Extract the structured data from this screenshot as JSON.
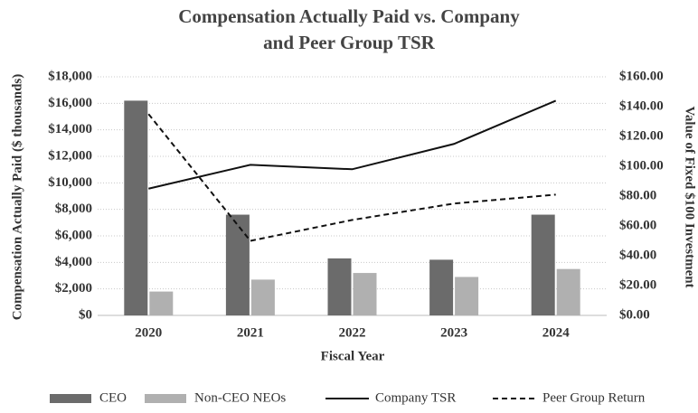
{
  "chart_data": {
    "type": "bar_line",
    "title_lines": [
      "Compensation Actually Paid vs. Company",
      "and Peer Group TSR"
    ],
    "x_label": "Fiscal Year",
    "y_label": "Compensation Actually Paid ($ thousands)",
    "y2_label": "Value of Fixed $100 Investment",
    "categories": [
      "2020",
      "2021",
      "2022",
      "2023",
      "2024"
    ],
    "series": [
      {
        "name": "CEO",
        "kind": "bar",
        "color": "#6b6b6b",
        "values": [
          16200,
          7600,
          4300,
          4200,
          7600
        ]
      },
      {
        "name": "Non-CEO NEOs",
        "kind": "bar",
        "color": "#b0b0b0",
        "values": [
          1800,
          2700,
          3200,
          2900,
          3500
        ]
      },
      {
        "name": "Company TSR",
        "kind": "line",
        "dash": false,
        "color": "#111111",
        "axis": "y2",
        "values": [
          85,
          101,
          98,
          115,
          144
        ]
      },
      {
        "name": "Peer Group Return",
        "kind": "line",
        "dash": true,
        "color": "#111111",
        "axis": "y2",
        "values": [
          135,
          50,
          64,
          75,
          81
        ]
      }
    ],
    "ylim": [
      0,
      18000
    ],
    "yticks": [
      {
        "value": 0,
        "label": "$0"
      },
      {
        "value": 2000,
        "label": "$2,000"
      },
      {
        "value": 4000,
        "label": "$4,000"
      },
      {
        "value": 6000,
        "label": "$6,000"
      },
      {
        "value": 8000,
        "label": "$8,000"
      },
      {
        "value": 10000,
        "label": "$10,000"
      },
      {
        "value": 12000,
        "label": "$12,000"
      },
      {
        "value": 14000,
        "label": "$14,000"
      },
      {
        "value": 16000,
        "label": "$16,000"
      },
      {
        "value": 18000,
        "label": "$18,000"
      }
    ],
    "y2lim": [
      0,
      160
    ],
    "y2ticks": [
      {
        "value": 0,
        "label": "$0.00"
      },
      {
        "value": 20,
        "label": "$20.00"
      },
      {
        "value": 40,
        "label": "$40.00"
      },
      {
        "value": 60,
        "label": "$60.00"
      },
      {
        "value": 80,
        "label": "$80.00"
      },
      {
        "value": 100,
        "label": "$100.00"
      },
      {
        "value": 120,
        "label": "$120.00"
      },
      {
        "value": 140,
        "label": "$140.00"
      },
      {
        "value": 160,
        "label": "$160.00"
      }
    ],
    "grid": true,
    "legend": "bottom"
  }
}
